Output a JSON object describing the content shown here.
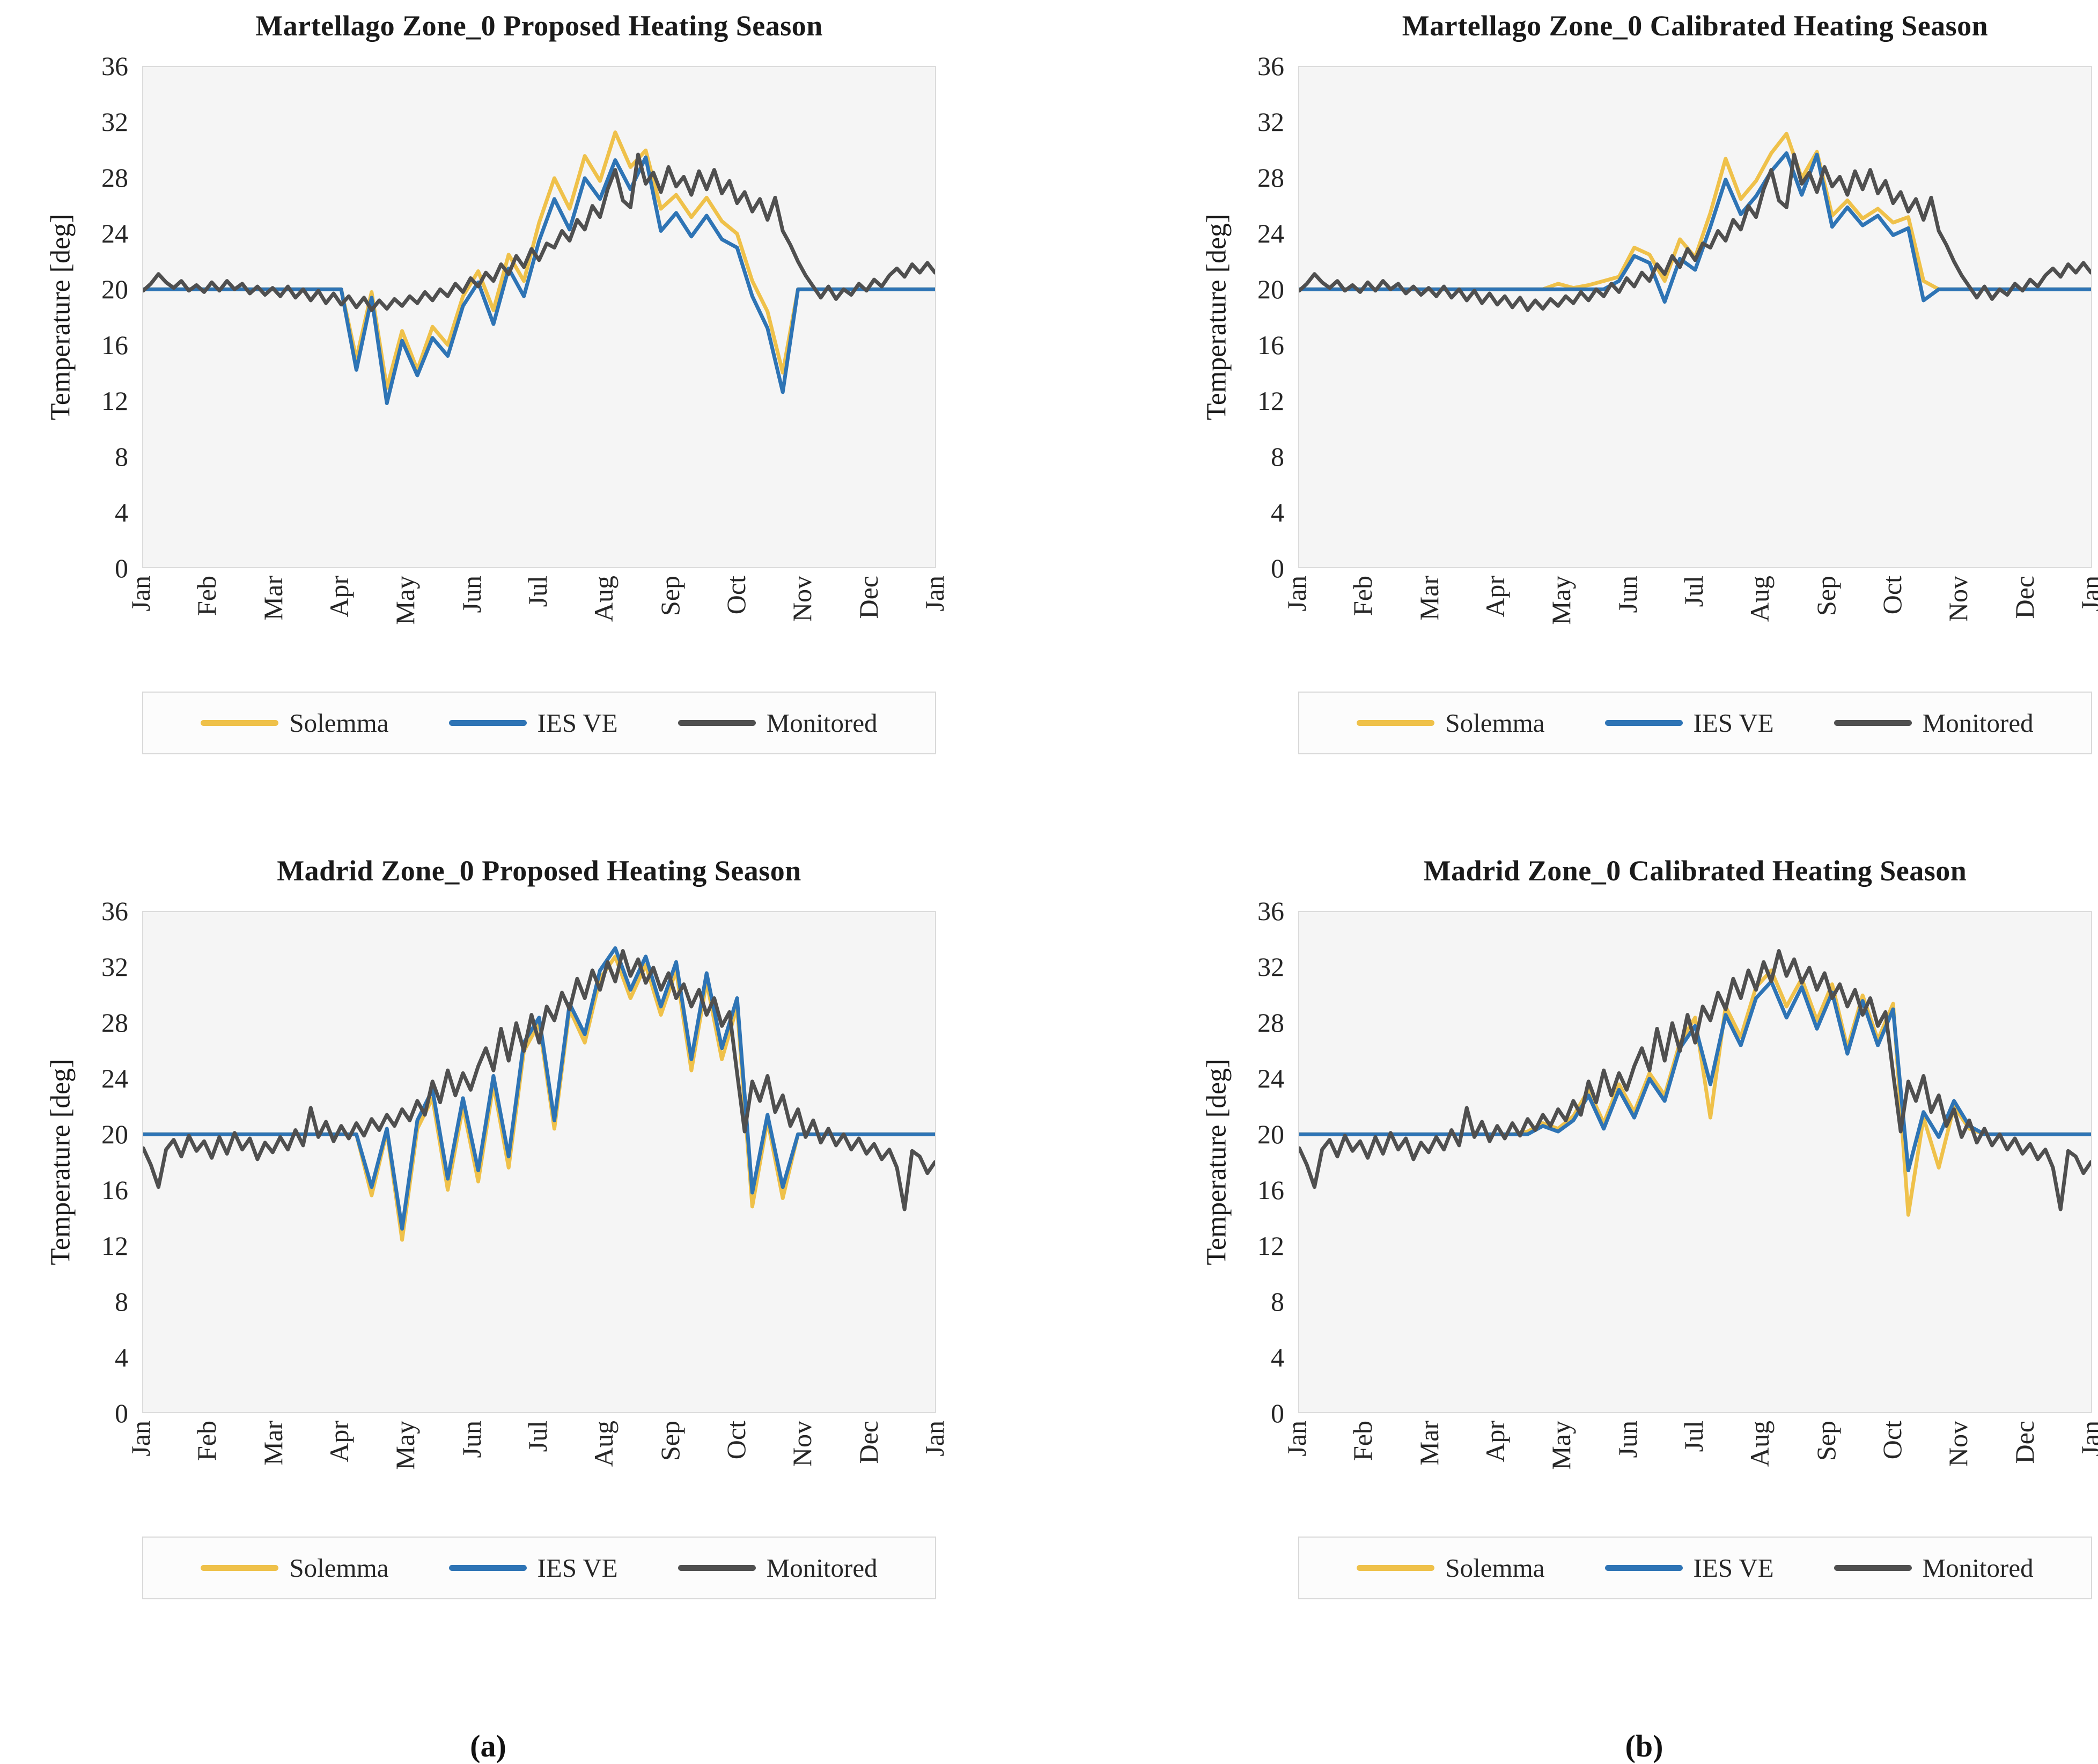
{
  "figure": {
    "captions": {
      "a": "(a)",
      "b": "(b)"
    }
  },
  "chart_data": [
    {
      "type": "line",
      "title": "Martellago Zone_0 Proposed Heating Season",
      "ylabel": "Temperature [deg]",
      "ylim": [
        0,
        36
      ],
      "y_ticks": [
        36,
        32,
        28,
        24,
        20,
        16,
        12,
        8,
        4,
        0
      ],
      "x_ticks": [
        "Jan",
        "Feb",
        "Mar",
        "Apr",
        "May",
        "Jun",
        "Jul",
        "Aug",
        "Sep",
        "Oct",
        "Nov",
        "Dec",
        "Jan"
      ],
      "grid": false,
      "legend_position": "bottom",
      "series": [
        {
          "name": "Solemma",
          "color": "#EFC14A",
          "values": [
            20,
            20,
            20,
            20,
            20,
            20,
            20,
            20,
            20,
            20,
            20,
            20,
            20,
            20,
            15.0,
            19.8,
            12.9,
            17.0,
            14.2,
            17.3,
            16.0,
            19.5,
            21.3,
            18.5,
            22.5,
            20.6,
            24.8,
            28.0,
            25.8,
            29.6,
            27.8,
            31.3,
            28.8,
            30.0,
            25.8,
            26.8,
            25.2,
            26.6,
            24.9,
            24.0,
            20.6,
            18.4,
            14.0,
            20,
            20,
            20,
            20,
            20,
            20,
            20,
            20,
            20,
            20
          ]
        },
        {
          "name": "IES VE",
          "color": "#2E74B5",
          "values": [
            20,
            20,
            20,
            20,
            20,
            20,
            20,
            20,
            20,
            20,
            20,
            20,
            20,
            20,
            14.2,
            19.4,
            11.8,
            16.3,
            13.8,
            16.5,
            15.2,
            18.8,
            20.5,
            17.5,
            21.5,
            19.5,
            23.5,
            26.5,
            24.3,
            28.0,
            26.5,
            29.3,
            27.2,
            29.5,
            24.2,
            25.5,
            23.8,
            25.3,
            23.6,
            23.0,
            19.5,
            17.2,
            12.6,
            20,
            20,
            20,
            20,
            20,
            20,
            20,
            20,
            20,
            20
          ]
        },
        {
          "name": "Monitored",
          "color": "#4F4F4F",
          "values": [
            19.9,
            20.4,
            21.1,
            20.5,
            20.1,
            20.6,
            19.9,
            20.3,
            19.8,
            20.5,
            19.9,
            20.6,
            20.0,
            20.4,
            19.7,
            20.2,
            19.6,
            20.1,
            19.5,
            20.2,
            19.4,
            20.0,
            19.2,
            19.9,
            19.0,
            19.7,
            18.9,
            19.5,
            18.7,
            19.4,
            18.5,
            19.2,
            18.6,
            19.3,
            18.8,
            19.5,
            19.0,
            19.8,
            19.2,
            20.0,
            19.5,
            20.4,
            19.8,
            20.8,
            20.2,
            21.2,
            20.6,
            21.8,
            21.1,
            22.4,
            21.6,
            22.9,
            22.1,
            23.3,
            23.0,
            24.2,
            23.5,
            25.0,
            24.3,
            26.0,
            25.2,
            27.2,
            28.6,
            26.4,
            25.9,
            29.7,
            27.6,
            28.4,
            27.0,
            28.8,
            27.4,
            28.1,
            26.8,
            28.5,
            27.2,
            28.6,
            26.9,
            27.8,
            26.2,
            27.0,
            25.6,
            26.5,
            25.0,
            26.6,
            24.2,
            23.2,
            22.0,
            21.0,
            20.2,
            19.4,
            20.2,
            19.3,
            20.0,
            19.6,
            20.4,
            19.9,
            20.7,
            20.2,
            21.0,
            21.5,
            20.9,
            21.8,
            21.2,
            21.9,
            21.2
          ]
        }
      ]
    },
    {
      "type": "line",
      "title": "Martellago Zone_0 Calibrated Heating Season",
      "ylabel": "Temperature [deg]",
      "ylim": [
        0,
        36
      ],
      "y_ticks": [
        36,
        32,
        28,
        24,
        20,
        16,
        12,
        8,
        4,
        0
      ],
      "x_ticks": [
        "Jan",
        "Feb",
        "Mar",
        "Apr",
        "May",
        "Jun",
        "Jul",
        "Aug",
        "Sep",
        "Oct",
        "Nov",
        "Dec",
        "Jan"
      ],
      "grid": false,
      "legend_position": "bottom",
      "series": [
        {
          "name": "Solemma",
          "color": "#EFC14A",
          "values": [
            20,
            20,
            20,
            20,
            20,
            20,
            20,
            20,
            20,
            20,
            20,
            20,
            20,
            20,
            20,
            20,
            20,
            20.4,
            20.1,
            20.3,
            20.6,
            20.9,
            23.0,
            22.5,
            20.6,
            23.6,
            22.3,
            25.5,
            29.4,
            26.5,
            27.8,
            29.8,
            31.2,
            28.0,
            29.9,
            25.3,
            26.4,
            25.1,
            25.8,
            24.8,
            25.2,
            20.6,
            20,
            20,
            20,
            20,
            20,
            20,
            20,
            20,
            20,
            20,
            20
          ]
        },
        {
          "name": "IES VE",
          "color": "#2E74B5",
          "values": [
            20,
            20,
            20,
            20,
            20,
            20,
            20,
            20,
            20,
            20,
            20,
            20,
            20,
            20,
            20,
            20,
            20,
            20,
            20,
            20,
            20.0,
            20.6,
            22.4,
            21.9,
            19.1,
            22.2,
            21.4,
            24.5,
            27.9,
            25.4,
            26.7,
            28.5,
            29.8,
            26.8,
            29.7,
            24.5,
            25.9,
            24.6,
            25.3,
            23.9,
            24.4,
            19.2,
            20,
            20,
            20,
            20,
            20,
            20,
            20,
            20,
            20,
            20,
            20
          ]
        },
        {
          "name": "Monitored",
          "color": "#4F4F4F",
          "values": [
            19.9,
            20.4,
            21.1,
            20.5,
            20.1,
            20.6,
            19.9,
            20.3,
            19.8,
            20.5,
            19.9,
            20.6,
            20.0,
            20.4,
            19.7,
            20.2,
            19.6,
            20.1,
            19.5,
            20.2,
            19.4,
            20.0,
            19.2,
            19.9,
            19.0,
            19.7,
            18.9,
            19.5,
            18.7,
            19.4,
            18.5,
            19.2,
            18.6,
            19.3,
            18.8,
            19.5,
            19.0,
            19.8,
            19.2,
            20.0,
            19.5,
            20.4,
            19.8,
            20.8,
            20.2,
            21.2,
            20.6,
            21.8,
            21.1,
            22.4,
            21.6,
            22.9,
            22.1,
            23.3,
            23.0,
            24.2,
            23.5,
            25.0,
            24.3,
            26.0,
            25.2,
            27.2,
            28.6,
            26.4,
            25.9,
            29.7,
            27.6,
            28.4,
            27.0,
            28.8,
            27.4,
            28.1,
            26.8,
            28.5,
            27.2,
            28.6,
            26.9,
            27.8,
            26.2,
            27.0,
            25.6,
            26.5,
            25.0,
            26.6,
            24.2,
            23.2,
            22.0,
            21.0,
            20.2,
            19.4,
            20.2,
            19.3,
            20.0,
            19.6,
            20.4,
            19.9,
            20.7,
            20.2,
            21.0,
            21.5,
            20.9,
            21.8,
            21.2,
            21.9,
            21.2
          ]
        }
      ]
    },
    {
      "type": "line",
      "title": "Madrid Zone_0 Proposed Heating Season",
      "ylabel": "Temperature [deg]",
      "ylim": [
        0,
        36
      ],
      "y_ticks": [
        36,
        32,
        28,
        24,
        20,
        16,
        12,
        8,
        4,
        0
      ],
      "x_ticks": [
        "Jan",
        "Feb",
        "Mar",
        "Apr",
        "May",
        "Jun",
        "Jul",
        "Aug",
        "Sep",
        "Oct",
        "Nov",
        "Dec",
        "Jan"
      ],
      "grid": false,
      "legend_position": "bottom",
      "series": [
        {
          "name": "Solemma",
          "color": "#EFC14A",
          "values": [
            20,
            20,
            20,
            20,
            20,
            20,
            20,
            20,
            20,
            20,
            20,
            20,
            20,
            20,
            20,
            15.6,
            20.2,
            12.4,
            20.4,
            22.6,
            16.0,
            22.0,
            16.6,
            23.6,
            17.6,
            26.0,
            28.0,
            20.4,
            29.0,
            26.6,
            31.2,
            32.8,
            29.8,
            32.2,
            28.6,
            31.8,
            24.6,
            31.0,
            25.4,
            29.2,
            14.8,
            21.0,
            15.4,
            20,
            20,
            20,
            20,
            20,
            20,
            20,
            20,
            20,
            20
          ]
        },
        {
          "name": "IES VE",
          "color": "#2E74B5",
          "values": [
            20,
            20,
            20,
            20,
            20,
            20,
            20,
            20,
            20,
            20,
            20,
            20,
            20,
            20,
            20,
            16.2,
            20.4,
            13.2,
            21.0,
            23.2,
            16.8,
            22.6,
            17.4,
            24.2,
            18.4,
            26.6,
            28.4,
            21.0,
            29.4,
            27.2,
            31.8,
            33.4,
            30.4,
            32.8,
            29.2,
            32.4,
            25.4,
            31.6,
            26.2,
            29.8,
            15.8,
            21.4,
            16.2,
            20,
            20,
            20,
            20,
            20,
            20,
            20,
            20,
            20,
            20
          ]
        },
        {
          "name": "Monitored",
          "color": "#4F4F4F",
          "values": [
            19.0,
            17.8,
            16.2,
            18.9,
            19.6,
            18.4,
            19.9,
            18.8,
            19.5,
            18.3,
            19.8,
            18.6,
            20.1,
            18.9,
            19.7,
            18.2,
            19.4,
            18.7,
            19.8,
            18.9,
            20.3,
            19.2,
            21.9,
            19.8,
            20.9,
            19.5,
            20.6,
            19.7,
            20.8,
            19.9,
            21.1,
            20.3,
            21.4,
            20.6,
            21.8,
            21.0,
            22.4,
            21.4,
            23.8,
            22.3,
            24.6,
            22.8,
            24.4,
            23.2,
            24.9,
            26.2,
            24.6,
            27.6,
            25.3,
            28.0,
            26.0,
            28.6,
            26.6,
            29.2,
            28.2,
            30.2,
            29.0,
            31.2,
            29.8,
            31.8,
            30.4,
            32.4,
            31.0,
            33.2,
            31.4,
            32.6,
            30.9,
            32.0,
            30.4,
            31.6,
            29.8,
            30.8,
            29.2,
            30.4,
            28.6,
            29.8,
            27.8,
            28.8,
            24.4,
            20.2,
            23.8,
            22.4,
            24.2,
            21.6,
            22.8,
            20.6,
            21.8,
            19.8,
            21.0,
            19.4,
            20.4,
            19.2,
            20.0,
            18.9,
            19.7,
            18.6,
            19.3,
            18.2,
            18.9,
            17.6,
            14.6,
            18.8,
            18.4,
            17.2,
            18.0
          ]
        }
      ]
    },
    {
      "type": "line",
      "title": "Madrid Zone_0 Calibrated Heating Season",
      "ylabel": "Temperature [deg]",
      "ylim": [
        0,
        36
      ],
      "y_ticks": [
        36,
        32,
        28,
        24,
        20,
        16,
        12,
        8,
        4,
        0
      ],
      "x_ticks": [
        "Jan",
        "Feb",
        "Mar",
        "Apr",
        "May",
        "Jun",
        "Jul",
        "Aug",
        "Sep",
        "Oct",
        "Nov",
        "Dec",
        "Jan"
      ],
      "grid": false,
      "legend_position": "bottom",
      "series": [
        {
          "name": "Solemma",
          "color": "#EFC14A",
          "values": [
            20,
            20,
            20,
            20,
            20,
            20,
            20,
            20,
            20,
            20,
            20,
            20,
            20,
            20,
            20,
            20.2,
            20.8,
            20.4,
            21.3,
            23.2,
            20.8,
            23.6,
            21.6,
            24.4,
            22.8,
            26.6,
            28.4,
            21.2,
            29.2,
            27.0,
            30.6,
            31.8,
            29.2,
            31.2,
            28.2,
            30.8,
            26.2,
            30.0,
            26.8,
            29.4,
            14.2,
            21.2,
            17.6,
            22.0,
            20.4,
            20,
            20,
            20,
            20,
            20,
            20,
            20,
            20
          ]
        },
        {
          "name": "IES VE",
          "color": "#2E74B5",
          "values": [
            20,
            20,
            20,
            20,
            20,
            20,
            20,
            20,
            20,
            20,
            20,
            20,
            20,
            20,
            20,
            20.0,
            20.6,
            20.2,
            21.0,
            22.8,
            20.4,
            23.2,
            21.2,
            24.0,
            22.4,
            26.2,
            27.8,
            23.6,
            28.6,
            26.4,
            29.8,
            31.0,
            28.4,
            30.6,
            27.6,
            30.2,
            25.8,
            29.6,
            26.4,
            29.0,
            17.4,
            21.6,
            19.8,
            22.4,
            20.6,
            20,
            20,
            20,
            20,
            20,
            20,
            20,
            20
          ]
        },
        {
          "name": "Monitored",
          "color": "#4F4F4F",
          "values": [
            19.0,
            17.8,
            16.2,
            18.9,
            19.6,
            18.4,
            19.9,
            18.8,
            19.5,
            18.3,
            19.8,
            18.6,
            20.1,
            18.9,
            19.7,
            18.2,
            19.4,
            18.7,
            19.8,
            18.9,
            20.3,
            19.2,
            21.9,
            19.8,
            20.9,
            19.5,
            20.6,
            19.7,
            20.8,
            19.9,
            21.1,
            20.3,
            21.4,
            20.6,
            21.8,
            21.0,
            22.4,
            21.4,
            23.8,
            22.3,
            24.6,
            22.8,
            24.4,
            23.2,
            24.9,
            26.2,
            24.6,
            27.6,
            25.3,
            28.0,
            26.0,
            28.6,
            26.6,
            29.2,
            28.2,
            30.2,
            29.0,
            31.2,
            29.8,
            31.8,
            30.4,
            32.4,
            31.0,
            33.2,
            31.4,
            32.6,
            30.9,
            32.0,
            30.4,
            31.6,
            29.8,
            30.8,
            29.2,
            30.4,
            28.6,
            29.8,
            27.8,
            28.8,
            24.4,
            20.2,
            23.8,
            22.4,
            24.2,
            21.6,
            22.8,
            20.6,
            21.8,
            19.8,
            21.0,
            19.4,
            20.4,
            19.2,
            20.0,
            18.9,
            19.7,
            18.6,
            19.3,
            18.2,
            18.9,
            17.6,
            14.6,
            18.8,
            18.4,
            17.2,
            18.0
          ]
        }
      ]
    }
  ]
}
